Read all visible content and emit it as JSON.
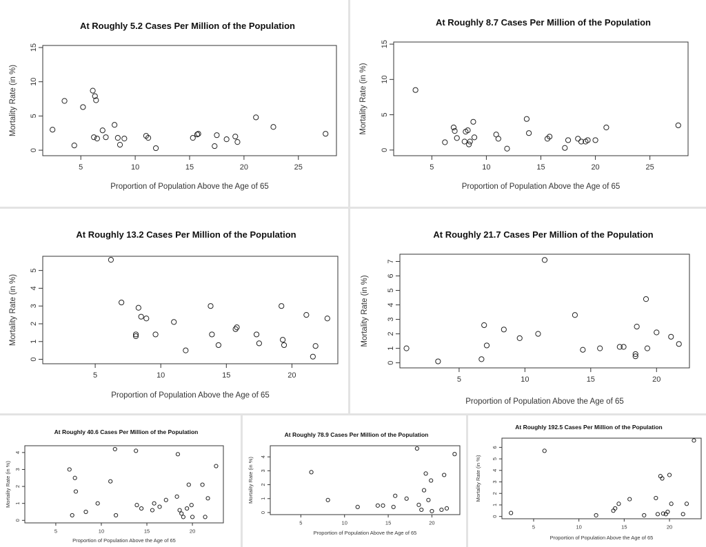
{
  "common": {
    "xlabel": "Proportion of Population Above the Age of 65",
    "ylabel": "Mortality Rate (in %)"
  },
  "chart_data": [
    {
      "type": "scatter",
      "title": "At Roughly 5.2 Cases Per Million of the Population",
      "xlabel": "Proportion of Population Above the Age of 65",
      "ylabel": "Mortality Rate (in %)",
      "xlim": [
        1.5,
        28.5
      ],
      "ylim": [
        -0.8,
        15.3
      ],
      "xticks": [
        5,
        10,
        15,
        20,
        25
      ],
      "yticks": [
        0,
        5,
        10,
        15
      ],
      "x": [
        2.4,
        3.5,
        4.4,
        5.2,
        6.1,
        6.2,
        6.3,
        6.4,
        6.5,
        7.0,
        7.3,
        8.1,
        8.4,
        8.6,
        9.0,
        11.0,
        11.2,
        11.9,
        15.3,
        15.7,
        15.8,
        17.3,
        17.5,
        18.4,
        19.2,
        19.4,
        21.1,
        22.7,
        27.5
      ],
      "y": [
        3.0,
        7.2,
        0.7,
        6.3,
        8.7,
        1.9,
        7.9,
        7.3,
        1.7,
        2.9,
        1.9,
        3.7,
        1.8,
        0.8,
        1.7,
        2.1,
        1.8,
        0.3,
        1.8,
        2.3,
        2.4,
        0.6,
        2.2,
        1.6,
        2.0,
        1.2,
        4.8,
        3.4,
        2.4
      ]
    },
    {
      "type": "scatter",
      "title": "At Roughly 8.7 Cases Per Million of the Population",
      "xlabel": "Proportion of Population Above the Age of 65",
      "ylabel": "Mortality Rate (in %)",
      "xlim": [
        1.5,
        28.5
      ],
      "ylim": [
        -0.8,
        15.3
      ],
      "xticks": [
        5,
        10,
        15,
        20,
        25
      ],
      "yticks": [
        0,
        5,
        10,
        15
      ],
      "x": [
        3.5,
        6.2,
        7.0,
        7.1,
        7.3,
        8.0,
        8.1,
        8.3,
        8.4,
        8.5,
        8.8,
        8.9,
        10.9,
        11.1,
        11.9,
        13.7,
        13.9,
        15.6,
        15.8,
        17.2,
        17.5,
        18.4,
        18.7,
        19.1,
        19.3,
        20.0,
        21.0,
        27.6
      ],
      "y": [
        8.5,
        1.1,
        3.2,
        2.7,
        1.7,
        1.2,
        2.6,
        2.8,
        0.8,
        1.2,
        4.0,
        1.8,
        2.2,
        1.6,
        0.2,
        4.4,
        2.4,
        1.6,
        1.9,
        0.3,
        1.4,
        1.6,
        1.2,
        1.2,
        1.4,
        1.4,
        3.2,
        3.5
      ]
    },
    {
      "type": "scatter",
      "title": "At Roughly 13.2 Cases Per Million of the Population",
      "xlabel": "Proportion of Population Above the Age of 65",
      "ylabel": "Mortality Rate (in %)",
      "xlim": [
        1.0,
        23.5
      ],
      "ylim": [
        -0.25,
        5.8
      ],
      "xticks": [
        5,
        10,
        15,
        20
      ],
      "yticks": [
        0,
        1,
        2,
        3,
        4,
        5
      ],
      "x": [
        6.2,
        7.0,
        8.1,
        8.1,
        8.3,
        8.5,
        8.9,
        9.6,
        11.0,
        11.9,
        13.8,
        13.9,
        14.4,
        15.7,
        15.8,
        17.3,
        17.5,
        19.2,
        19.3,
        19.4,
        21.1,
        21.6,
        21.8,
        22.7
      ],
      "y": [
        5.6,
        3.2,
        1.4,
        1.3,
        2.9,
        2.4,
        2.3,
        1.4,
        2.1,
        0.5,
        3.0,
        1.4,
        0.8,
        1.7,
        1.8,
        1.4,
        0.9,
        3.0,
        1.1,
        0.8,
        2.5,
        0.15,
        0.75,
        2.3
      ]
    },
    {
      "type": "scatter",
      "title": "At Roughly 21.7 Cases Per Million of the Population",
      "xlabel": "Proportion of Population Above the Age of 65",
      "ylabel": "Mortality Rate (in %)",
      "xlim": [
        0.5,
        22.5
      ],
      "ylim": [
        -0.35,
        7.5
      ],
      "xticks": [
        5,
        10,
        15,
        20
      ],
      "yticks": [
        0,
        1,
        2,
        3,
        4,
        5,
        6,
        7
      ],
      "x": [
        1.0,
        3.4,
        6.7,
        6.9,
        7.1,
        8.4,
        9.6,
        11.0,
        11.5,
        13.8,
        14.4,
        15.7,
        17.2,
        17.5,
        18.4,
        18.4,
        18.5,
        19.2,
        19.3,
        20.0,
        21.1,
        21.7
      ],
      "y": [
        1.0,
        0.1,
        0.25,
        2.6,
        1.2,
        2.3,
        1.7,
        2.0,
        7.1,
        3.3,
        0.9,
        1.0,
        1.1,
        1.1,
        0.6,
        0.45,
        2.5,
        4.4,
        1.0,
        2.1,
        1.8,
        1.3
      ]
    },
    {
      "type": "scatter",
      "title": "At Roughly 40.6 Cases Per Million of the Population",
      "xlabel": "Proportion of Population Above the Age of 65",
      "ylabel": "Mortality Rate (in %)",
      "xlim": [
        1.6,
        23.4
      ],
      "ylim": [
        -0.15,
        4.4
      ],
      "xticks": [
        5,
        10,
        15,
        20
      ],
      "yticks": [
        0,
        1,
        2,
        3,
        4
      ],
      "x": [
        6.5,
        6.8,
        7.1,
        7.2,
        8.3,
        9.6,
        11.0,
        11.5,
        11.6,
        13.8,
        13.9,
        14.4,
        15.6,
        15.8,
        16.4,
        17.1,
        18.3,
        18.4,
        18.6,
        18.8,
        19.0,
        19.4,
        19.6,
        19.9,
        20.0,
        21.1,
        21.4,
        21.7,
        22.6
      ],
      "y": [
        3.0,
        0.3,
        2.5,
        1.7,
        0.5,
        1.0,
        2.3,
        4.2,
        0.3,
        4.1,
        0.9,
        0.7,
        0.6,
        1.0,
        0.8,
        1.2,
        1.4,
        3.9,
        0.6,
        0.4,
        0.2,
        0.7,
        2.1,
        0.9,
        0.2,
        2.1,
        0.2,
        1.3,
        3.2
      ]
    },
    {
      "type": "scatter",
      "title": "At Roughly 78.9 Cases Per Million of the Population",
      "xlabel": "Proportion of Population Above the Age of 65",
      "ylabel": "Mortality Rate (in %)",
      "xlim": [
        1.5,
        23.2
      ],
      "ylim": [
        -0.15,
        4.8
      ],
      "xticks": [
        5,
        10,
        15,
        20
      ],
      "yticks": [
        0,
        1,
        2,
        3,
        4
      ],
      "x": [
        6.2,
        8.1,
        11.5,
        13.8,
        14.4,
        15.6,
        15.8,
        17.1,
        18.3,
        18.5,
        18.8,
        19.1,
        19.3,
        19.6,
        19.9,
        20.0,
        21.1,
        21.4,
        21.7,
        22.6
      ],
      "y": [
        2.9,
        0.9,
        0.4,
        0.5,
        0.5,
        0.4,
        1.2,
        1.0,
        4.6,
        0.55,
        0.2,
        1.6,
        2.8,
        0.9,
        2.3,
        0.1,
        0.2,
        2.7,
        0.3,
        4.2
      ]
    },
    {
      "type": "scatter",
      "title": "At Roughly 192.5 Cases Per Million of the Population",
      "xlabel": "Proportion of Population Above the Age of 65",
      "ylabel": "Mortality Rate (in %)",
      "xlim": [
        1.5,
        23.5
      ],
      "ylim": [
        -0.2,
        6.8
      ],
      "xticks": [
        5,
        10,
        15,
        20
      ],
      "yticks": [
        0,
        1,
        2,
        3,
        4,
        5,
        6
      ],
      "x": [
        2.5,
        6.2,
        11.9,
        13.8,
        14.0,
        14.4,
        15.6,
        17.2,
        18.5,
        18.7,
        19.0,
        19.2,
        19.3,
        19.6,
        19.8,
        20.0,
        20.2,
        21.5,
        21.9,
        22.7
      ],
      "y": [
        0.3,
        5.7,
        0.1,
        0.5,
        0.7,
        1.1,
        1.5,
        0.1,
        1.6,
        0.2,
        3.5,
        3.3,
        0.25,
        0.2,
        0.4,
        3.6,
        1.1,
        0.2,
        1.1,
        6.6
      ]
    }
  ]
}
